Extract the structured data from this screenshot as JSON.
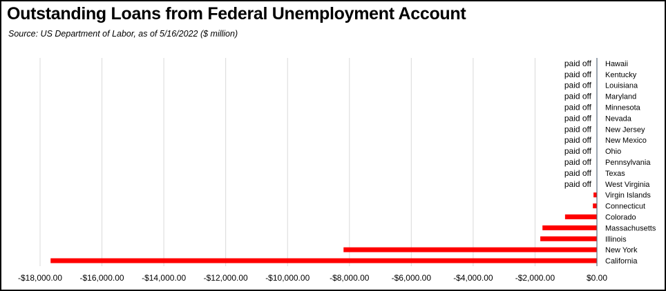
{
  "chart_data": {
    "type": "bar",
    "orientation": "horizontal",
    "title": "Outstanding Loans from Federal Unemployment Account",
    "subtitle": "Source:  US Department of Labor, as of 5/16/2022  ($ million)",
    "xlabel": "",
    "ylabel": "",
    "xlim": [
      -18000,
      0
    ],
    "x_ticks": [
      -18000,
      -16000,
      -14000,
      -12000,
      -10000,
      -8000,
      -6000,
      -4000,
      -2000,
      0
    ],
    "x_tick_labels": [
      "-$18,000.00",
      "-$16,000.00",
      "-$14,000.00",
      "-$12,000.00",
      "-$10,000.00",
      "-$8,000.00",
      "-$6,000.00",
      "-$4,000.00",
      "-$2,000.00",
      "$0.00"
    ],
    "grid": true,
    "bar_color": "#ff0000",
    "categories": [
      "Hawaii",
      "Kentucky",
      "Louisiana",
      "Maryland",
      "Minnesota",
      "Nevada",
      "New Jersey",
      "New Mexico",
      "Ohio",
      "Pennsylvania",
      "Texas",
      "West Virginia",
      "Virgin Islands",
      "Connecticut",
      "Colorado",
      "Massachusetts",
      "Illinois",
      "New York",
      "California"
    ],
    "values": [
      0,
      0,
      0,
      0,
      0,
      0,
      0,
      0,
      0,
      0,
      0,
      0,
      -110,
      -130,
      -1030,
      -1760,
      -1830,
      -8190,
      -17660
    ],
    "data_labels": [
      "paid off",
      "paid off",
      "paid off",
      "paid off",
      "paid off",
      "paid off",
      "paid off",
      "paid off",
      "paid off",
      "paid off",
      "paid off",
      "paid off",
      "",
      "",
      "",
      "",
      "",
      "",
      ""
    ]
  }
}
